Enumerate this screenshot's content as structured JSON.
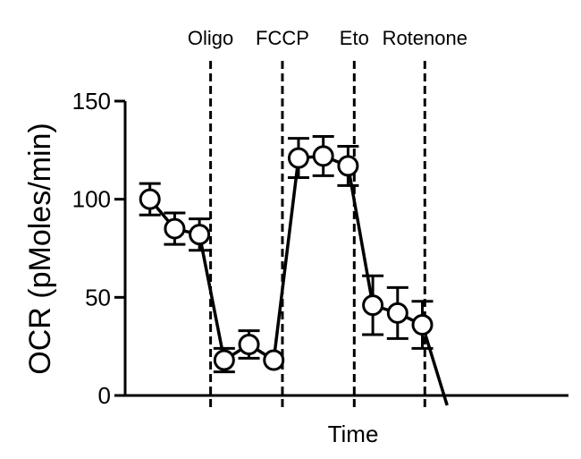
{
  "chart_data": {
    "type": "line",
    "title": "",
    "xlabel": "Time",
    "ylabel": "OCR (pMoles/min)",
    "ylim": [
      0,
      150
    ],
    "yticks": [
      0,
      50,
      100,
      150
    ],
    "xlim": [
      0,
      17.9
    ],
    "grid": false,
    "legend": "none",
    "series": [
      {
        "marker": "open-circle",
        "color": "#000000",
        "x": [
          1,
          2,
          3,
          4,
          5,
          6,
          7,
          8,
          9,
          10,
          11,
          12,
          13
        ],
        "y": [
          100,
          85,
          82,
          18,
          26,
          18,
          121,
          122,
          117,
          46,
          42,
          36,
          -5
        ],
        "error": [
          8,
          8,
          8,
          6,
          7,
          0,
          10,
          10,
          10,
          15,
          13,
          12,
          0
        ]
      }
    ],
    "annotations": [
      {
        "label": "Oligo",
        "x": 3.45
      },
      {
        "label": "FCCP",
        "x": 6.35
      },
      {
        "label": "Eto",
        "x": 9.25
      },
      {
        "label": "Rotenone",
        "x": 12.1
      }
    ]
  }
}
